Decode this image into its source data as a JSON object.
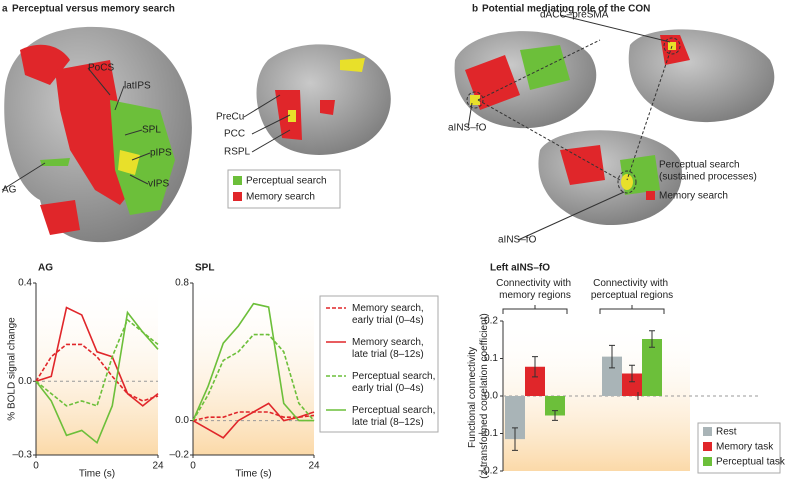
{
  "figure": {
    "panel_a": {
      "letter": "a",
      "title": "Perceptual versus memory search",
      "labels": [
        "PoCS",
        "latIPS",
        "SPL",
        "pIPS",
        "vIPS",
        "AG",
        "PreCu",
        "PCC",
        "RSPL"
      ],
      "legend": [
        "Perceptual search",
        "Memory search"
      ]
    },
    "panel_b": {
      "letter": "b",
      "title": "Potential mediating role of the CON",
      "labels": [
        "dACC–preSMA",
        "aINS–fO",
        "aINS–fO"
      ],
      "legend": [
        "Perceptual search",
        "(sustained processes)",
        "Memory search"
      ]
    }
  },
  "chart_data": [
    {
      "type": "line",
      "title": "AG",
      "xlabel": "Time (s)",
      "ylabel": "% BOLD signal change",
      "x": [
        0,
        3,
        6,
        9,
        12,
        15,
        18,
        21,
        24
      ],
      "xlim": [
        0,
        24
      ],
      "xticks": [
        0,
        24
      ],
      "ylim": [
        -0.3,
        0.4
      ],
      "yticks": [
        {
          "value": -0.3,
          "label": "–0.3"
        },
        {
          "value": 0,
          "label": "0.0"
        },
        0.4
      ],
      "series": [
        {
          "name": "Memory search, early trial (0–4s)",
          "color": "#e0262a",
          "dash": true,
          "values": [
            0,
            0.1,
            0.15,
            0.15,
            0.1,
            0.02,
            -0.05,
            -0.08,
            -0.06
          ]
        },
        {
          "name": "Memory search, late trial (8–12s)",
          "color": "#e0262a",
          "dash": false,
          "values": [
            0,
            0.02,
            0.3,
            0.27,
            0.12,
            0.1,
            -0.05,
            -0.1,
            -0.05
          ]
        },
        {
          "name": "Perceptual search, early trial (0–4s)",
          "color": "#6cbf3a",
          "dash": true,
          "values": [
            0,
            -0.05,
            -0.1,
            -0.08,
            -0.1,
            0.1,
            0.25,
            0.2,
            0.15
          ]
        },
        {
          "name": "Perceptual search, late trial (8–12s)",
          "color": "#6cbf3a",
          "dash": false,
          "values": [
            0,
            -0.08,
            -0.22,
            -0.2,
            -0.25,
            -0.1,
            0.28,
            0.2,
            0.13
          ]
        }
      ]
    },
    {
      "type": "line",
      "title": "SPL",
      "xlabel": "Time (s)",
      "x": [
        0,
        3,
        6,
        9,
        12,
        15,
        18,
        21,
        24
      ],
      "xlim": [
        0,
        24
      ],
      "xticks": [
        0,
        24
      ],
      "ylim": [
        -0.2,
        0.8
      ],
      "yticks": [
        {
          "value": -0.2,
          "label": "–0.2"
        },
        {
          "value": 0,
          "label": "0.0"
        },
        0.8
      ],
      "series": [
        {
          "name": "Memory search, early trial (0–4s)",
          "color": "#e0262a",
          "dash": true,
          "values": [
            0,
            0.02,
            0.02,
            0.05,
            0.05,
            0.05,
            0.02,
            0.02,
            0.03
          ]
        },
        {
          "name": "Memory search, late trial (8–12s)",
          "color": "#e0262a",
          "dash": false,
          "values": [
            0,
            -0.05,
            -0.1,
            0,
            0.05,
            0.1,
            0,
            0.02,
            0.05
          ]
        },
        {
          "name": "Perceptual search, early trial (0–4s)",
          "color": "#6cbf3a",
          "dash": true,
          "values": [
            0,
            0.15,
            0.35,
            0.4,
            0.5,
            0.5,
            0.4,
            0.1,
            0
          ]
        },
        {
          "name": "Perceptual search, late trial (8–12s)",
          "color": "#6cbf3a",
          "dash": false,
          "values": [
            0,
            0.2,
            0.45,
            0.55,
            0.68,
            0.66,
            0.1,
            0,
            0
          ]
        }
      ]
    },
    {
      "type": "bar",
      "title": "Left aINS–fO",
      "ylabel": "Functional connectivity (z-transformed correlation coefficient)",
      "categories": [
        "Connectivity with memory regions",
        "Connectivity with perceptual regions"
      ],
      "ylim": [
        -0.2,
        0.2
      ],
      "yticks": [
        {
          "value": -0.2,
          "label": "–0.2"
        },
        {
          "value": -0.1,
          "label": "–0.1"
        },
        {
          "value": 0,
          "label": "0.0"
        },
        0.1,
        0.2
      ],
      "series": [
        {
          "name": "Rest",
          "color": "#a9b4b7",
          "values": [
            -0.115,
            0.105
          ],
          "errors": [
            0.03,
            0.03
          ]
        },
        {
          "name": "Memory task",
          "color": "#e0262a",
          "values": [
            0.078,
            0.06
          ],
          "errors": [
            0.027,
            0.022
          ]
        },
        {
          "name": "Perceptual task",
          "color": "#6cbf3a",
          "values": [
            -0.052,
            0.152
          ],
          "errors": [
            0.013,
            0.022
          ]
        }
      ]
    }
  ]
}
